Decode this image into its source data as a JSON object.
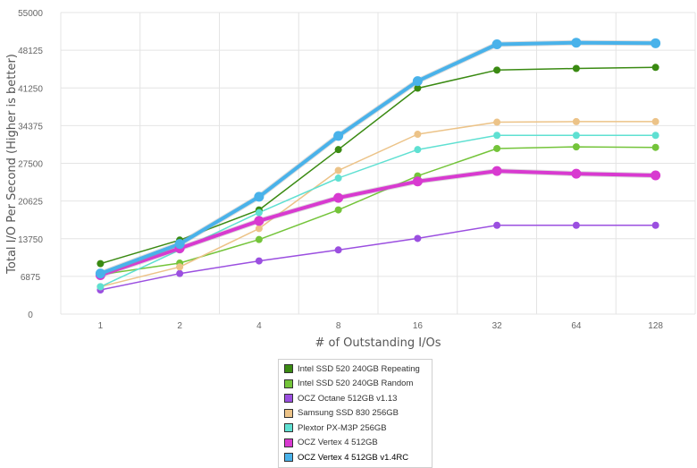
{
  "chart_data": {
    "type": "line",
    "xlabel": "# of Outstanding I/Os",
    "ylabel": "Total I/O Per Second (Higher is better)",
    "categories": [
      "1",
      "2",
      "4",
      "8",
      "16",
      "32",
      "64",
      "128"
    ],
    "ylim": [
      0,
      55000
    ],
    "yticks": [
      "0",
      "6875",
      "13750",
      "20625",
      "27500",
      "34375",
      "41250",
      "48125",
      "55000"
    ],
    "grid": true,
    "legend_position": "bottom-center",
    "series": [
      {
        "name": "Intel SSD 520 240GB Repeating",
        "color": "#3a8a12",
        "width": 1.5,
        "values": [
          9200,
          13500,
          19000,
          30000,
          41200,
          44500,
          44800,
          45000
        ]
      },
      {
        "name": "Intel SSD 520 240GB Random",
        "color": "#74c43a",
        "width": 1.5,
        "values": [
          7200,
          9300,
          13600,
          19000,
          25200,
          30200,
          30500,
          30400
        ]
      },
      {
        "name": "OCZ Octane 512GB v1.13",
        "color": "#9b4fe0",
        "width": 1.5,
        "values": [
          4400,
          7400,
          9700,
          11700,
          13800,
          16200,
          16200,
          16200
        ]
      },
      {
        "name": "Samsung SSD 830 256GB",
        "color": "#ecc388",
        "width": 1.5,
        "values": [
          5000,
          8600,
          15600,
          26200,
          32800,
          35000,
          35100,
          35100
        ]
      },
      {
        "name": "Plextor PX-M3P 256GB",
        "color": "#5fe0d2",
        "width": 1.5,
        "values": [
          5000,
          11700,
          18500,
          24800,
          30000,
          32600,
          32600,
          32600
        ]
      },
      {
        "name": "OCZ Vertex 4 512GB",
        "color": "#d83ad0",
        "width": 4,
        "values": [
          7100,
          12000,
          17000,
          21200,
          24200,
          26100,
          25600,
          25300
        ]
      },
      {
        "name": "OCZ Vertex 4 512GB v1.4RC",
        "color": "#49b2ea",
        "width": 4,
        "values": [
          7400,
          12800,
          21400,
          32500,
          42500,
          49200,
          49500,
          49400
        ]
      }
    ]
  }
}
